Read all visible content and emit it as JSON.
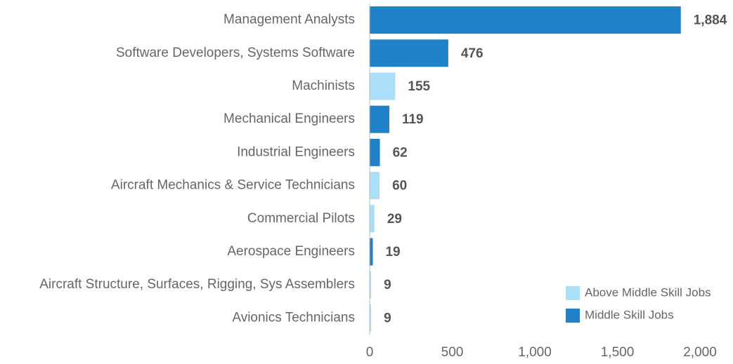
{
  "chart_data": {
    "type": "bar",
    "orientation": "horizontal",
    "categories": [
      "Management Analysts",
      "Software Developers, Systems Software",
      "Machinists",
      "Mechanical Engineers",
      "Industrial Engineers",
      "Aircraft Mechanics & Service Technicians",
      "Commercial Pilots",
      "Aerospace Engineers",
      "Aircraft Structure, Surfaces, Rigging, Sys Assemblers",
      "Avionics Technicians"
    ],
    "series": [
      {
        "name": "Above Middle Skill Jobs",
        "color": "#a9dff8",
        "values": [
          null,
          null,
          155,
          null,
          null,
          60,
          29,
          null,
          9,
          9
        ]
      },
      {
        "name": "Middle Skill Jobs",
        "color": "#1f82c8",
        "values": [
          1884,
          476,
          null,
          119,
          62,
          null,
          null,
          19,
          null,
          null
        ],
        "value_labels": [
          "1,884",
          null,
          null,
          null,
          null,
          null,
          null,
          null,
          null,
          null
        ]
      }
    ],
    "xlim": [
      0,
      2000
    ],
    "xticks": [
      0,
      500,
      {
        "value": 1000,
        "label": "1,000"
      },
      {
        "value": 1500,
        "label": "1,500"
      },
      {
        "value": 2000,
        "label": "2,000"
      }
    ],
    "legend": "bottom-right",
    "grid": false
  }
}
